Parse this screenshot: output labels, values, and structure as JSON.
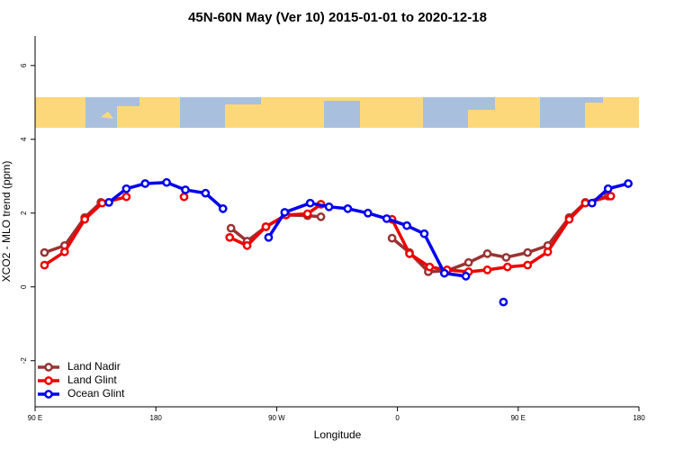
{
  "chart_data": {
    "type": "line",
    "title": "45N-60N May (Ver 10)   2015-01-01 to 2020-12-18",
    "xlabel": "Longitude",
    "ylabel": "XCO2 - MLO trend (ppm)",
    "xlim": [
      90,
      540
    ],
    "ylim": [
      -3.25,
      6.8
    ],
    "xticks": [
      {
        "value": 90,
        "label": "90 E"
      },
      180,
      {
        "value": 270,
        "label": "90 W"
      },
      {
        "value": 360,
        "label": "0"
      },
      {
        "value": 450,
        "label": "90 E"
      },
      {
        "value": 540,
        "label": "180"
      }
    ],
    "yticks": [
      -2,
      0,
      2,
      4,
      6
    ],
    "legend": "bottom-left",
    "series": [
      {
        "name": "Land Nadir",
        "color": "#993333",
        "x": [
          97,
          112,
          127,
          139,
          null,
          236,
          248,
          262,
          277,
          293,
          303,
          null,
          356,
          369,
          383,
          397,
          413,
          427,
          441,
          457,
          472,
          488,
          500,
          517
        ],
        "values": [
          0.93,
          1.12,
          1.88,
          2.29,
          null,
          1.59,
          1.24,
          1.63,
          1.95,
          1.93,
          1.9,
          null,
          1.32,
          0.93,
          0.41,
          0.44,
          0.66,
          0.9,
          0.8,
          0.93,
          1.12,
          1.88,
          2.29,
          2.46
        ]
      },
      {
        "name": "Land Glint",
        "color": "#ee0000",
        "x": [
          97,
          112,
          127,
          140,
          158,
          null,
          201,
          null,
          235,
          248,
          262,
          277,
          293,
          303,
          null,
          356,
          369,
          384,
          397,
          413,
          427,
          442,
          457,
          472,
          488,
          500,
          519
        ],
        "values": [
          0.59,
          0.95,
          1.83,
          2.27,
          2.44,
          null,
          2.44,
          null,
          1.34,
          1.12,
          1.63,
          1.95,
          1.98,
          2.24,
          null,
          1.83,
          0.9,
          0.54,
          0.46,
          0.41,
          0.46,
          0.54,
          0.59,
          0.95,
          1.83,
          2.27,
          2.46
        ]
      },
      {
        "name": "Ocean Glint",
        "color": "#0000ee",
        "x": [
          145,
          158,
          172,
          188,
          202,
          217,
          230,
          null,
          264,
          276,
          295,
          309,
          323,
          338,
          352,
          367,
          380,
          395,
          411,
          null,
          439,
          null,
          505,
          517,
          532
        ],
        "values": [
          2.29,
          2.66,
          2.8,
          2.83,
          2.63,
          2.54,
          2.12,
          null,
          1.34,
          2.02,
          2.27,
          2.17,
          2.12,
          2.0,
          1.85,
          1.66,
          1.44,
          0.37,
          0.29,
          null,
          -0.41,
          null,
          2.27,
          2.66,
          2.8
        ]
      }
    ]
  }
}
